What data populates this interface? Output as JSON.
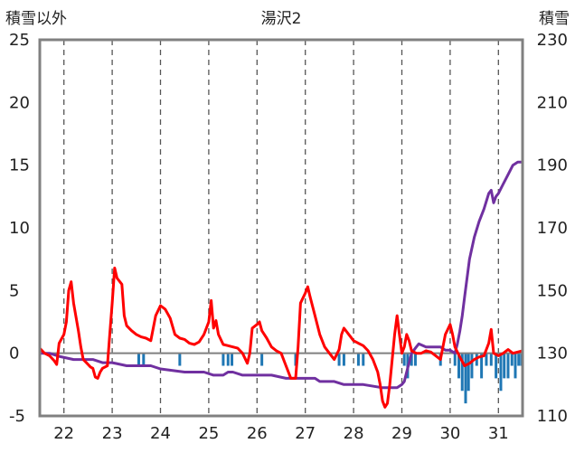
{
  "chart_data": {
    "type": "line",
    "title": "湯沢2",
    "left_axis_label": "積雪以外",
    "right_axis_label": "積雪",
    "x_categories": [
      "22",
      "23",
      "24",
      "25",
      "26",
      "27",
      "28",
      "29",
      "30",
      "31"
    ],
    "x_range": [
      21.5,
      31.5
    ],
    "y_left_ticks": [
      "25",
      "20",
      "15",
      "10",
      "5",
      "0",
      "-5"
    ],
    "y_left_range": [
      -5,
      25
    ],
    "y_right_ticks": [
      "230",
      "210",
      "190",
      "170",
      "150",
      "130",
      "110"
    ],
    "y_right_range": [
      110,
      230
    ],
    "grid": "dashed vertical at each day",
    "colors": {
      "temperature": "#ff0000",
      "snow_depth": "#7030a0",
      "precipitation": "#1f77b4",
      "zero_line": "#808080",
      "frame": "#808080"
    },
    "series": [
      {
        "key": "temperature",
        "axis": "left",
        "points": [
          [
            21.5,
            0.4
          ],
          [
            21.6,
            0
          ],
          [
            21.7,
            -0.2
          ],
          [
            21.8,
            -0.6
          ],
          [
            21.85,
            -0.9
          ],
          [
            21.9,
            0.8
          ],
          [
            22.0,
            1.5
          ],
          [
            22.05,
            2.5
          ],
          [
            22.1,
            5.0
          ],
          [
            22.15,
            5.7
          ],
          [
            22.2,
            4.0
          ],
          [
            22.3,
            1.8
          ],
          [
            22.35,
            0.5
          ],
          [
            22.4,
            -0.5
          ],
          [
            22.5,
            -0.9
          ],
          [
            22.55,
            -1.1
          ],
          [
            22.6,
            -1.2
          ],
          [
            22.65,
            -1.9
          ],
          [
            22.7,
            -2.0
          ],
          [
            22.75,
            -1.5
          ],
          [
            22.8,
            -1.2
          ],
          [
            22.85,
            -1.1
          ],
          [
            22.9,
            -1.0
          ],
          [
            22.95,
            1.5
          ],
          [
            23.0,
            4.0
          ],
          [
            23.05,
            6.8
          ],
          [
            23.1,
            6.0
          ],
          [
            23.2,
            5.5
          ],
          [
            23.25,
            3.0
          ],
          [
            23.3,
            2.2
          ],
          [
            23.4,
            1.8
          ],
          [
            23.5,
            1.5
          ],
          [
            23.6,
            1.3
          ],
          [
            23.7,
            1.2
          ],
          [
            23.8,
            1.0
          ],
          [
            23.9,
            3.0
          ],
          [
            24.0,
            3.8
          ],
          [
            24.1,
            3.5
          ],
          [
            24.2,
            2.8
          ],
          [
            24.3,
            1.5
          ],
          [
            24.4,
            1.2
          ],
          [
            24.5,
            1.1
          ],
          [
            24.6,
            0.8
          ],
          [
            24.7,
            0.7
          ],
          [
            24.8,
            0.9
          ],
          [
            24.9,
            1.5
          ],
          [
            25.0,
            2.5
          ],
          [
            25.05,
            4.2
          ],
          [
            25.1,
            2.0
          ],
          [
            25.15,
            2.6
          ],
          [
            25.2,
            1.5
          ],
          [
            25.3,
            0.7
          ],
          [
            25.4,
            0.6
          ],
          [
            25.5,
            0.5
          ],
          [
            25.6,
            0.4
          ],
          [
            25.7,
            0
          ],
          [
            25.8,
            -0.8
          ],
          [
            25.85,
            0
          ],
          [
            25.9,
            2.0
          ],
          [
            26.0,
            2.3
          ],
          [
            26.05,
            2.5
          ],
          [
            26.1,
            1.8
          ],
          [
            26.2,
            1.2
          ],
          [
            26.3,
            0.5
          ],
          [
            26.4,
            0.2
          ],
          [
            26.5,
            0.0
          ],
          [
            26.6,
            -1.0
          ],
          [
            26.7,
            -2.0
          ],
          [
            26.8,
            -2.0
          ],
          [
            26.85,
            0.5
          ],
          [
            26.9,
            4.0
          ],
          [
            27.0,
            4.8
          ],
          [
            27.05,
            5.3
          ],
          [
            27.1,
            4.5
          ],
          [
            27.2,
            3.0
          ],
          [
            27.3,
            1.5
          ],
          [
            27.4,
            0.5
          ],
          [
            27.5,
            0.0
          ],
          [
            27.6,
            -0.5
          ],
          [
            27.7,
            0.3
          ],
          [
            27.75,
            1.5
          ],
          [
            27.8,
            2.0
          ],
          [
            27.9,
            1.5
          ],
          [
            28.0,
            1.0
          ],
          [
            28.1,
            0.8
          ],
          [
            28.2,
            0.6
          ],
          [
            28.3,
            0.2
          ],
          [
            28.4,
            -0.5
          ],
          [
            28.5,
            -1.5
          ],
          [
            28.55,
            -2.5
          ],
          [
            28.6,
            -3.8
          ],
          [
            28.65,
            -4.3
          ],
          [
            28.7,
            -4.0
          ],
          [
            28.75,
            -2.5
          ],
          [
            28.8,
            -0.5
          ],
          [
            28.85,
            1.5
          ],
          [
            28.9,
            3.0
          ],
          [
            28.95,
            1.5
          ],
          [
            29.0,
            0
          ],
          [
            29.05,
            0.5
          ],
          [
            29.1,
            1.5
          ],
          [
            29.15,
            1.0
          ],
          [
            29.2,
            0.2
          ],
          [
            29.3,
            0.0
          ],
          [
            29.4,
            0.0
          ],
          [
            29.5,
            0.2
          ],
          [
            29.6,
            0.1
          ],
          [
            29.7,
            -0.2
          ],
          [
            29.8,
            -0.5
          ],
          [
            29.9,
            1.5
          ],
          [
            30.0,
            2.3
          ],
          [
            30.05,
            1.5
          ],
          [
            30.1,
            0.5
          ],
          [
            30.2,
            -0.3
          ],
          [
            30.3,
            -1.0
          ],
          [
            30.4,
            -0.8
          ],
          [
            30.5,
            -0.5
          ],
          [
            30.6,
            -0.3
          ],
          [
            30.7,
            -0.2
          ],
          [
            30.8,
            0.8
          ],
          [
            30.85,
            1.9
          ],
          [
            30.9,
            0
          ],
          [
            31.0,
            -0.2
          ],
          [
            31.1,
            0
          ],
          [
            31.2,
            0.3
          ],
          [
            31.3,
            0
          ],
          [
            31.4,
            0.1
          ],
          [
            31.5,
            0.2
          ]
        ]
      },
      {
        "key": "snow_depth",
        "axis": "right",
        "points": [
          [
            21.5,
            130
          ],
          [
            21.7,
            130
          ],
          [
            21.9,
            129
          ],
          [
            22.2,
            128
          ],
          [
            22.6,
            128
          ],
          [
            22.8,
            127
          ],
          [
            23.0,
            127
          ],
          [
            23.3,
            126
          ],
          [
            23.8,
            126
          ],
          [
            24.0,
            125
          ],
          [
            24.5,
            124
          ],
          [
            24.9,
            124
          ],
          [
            25.1,
            123
          ],
          [
            25.3,
            123
          ],
          [
            25.4,
            124
          ],
          [
            25.5,
            124
          ],
          [
            25.7,
            123
          ],
          [
            26.3,
            123
          ],
          [
            26.6,
            122
          ],
          [
            27.0,
            122
          ],
          [
            27.2,
            122
          ],
          [
            27.3,
            121
          ],
          [
            27.6,
            121
          ],
          [
            27.8,
            120
          ],
          [
            28.2,
            120
          ],
          [
            28.6,
            119
          ],
          [
            28.9,
            119
          ],
          [
            29.0,
            120
          ],
          [
            29.05,
            121
          ],
          [
            29.1,
            124
          ],
          [
            29.15,
            127
          ],
          [
            29.2,
            130
          ],
          [
            29.3,
            132
          ],
          [
            29.35,
            133
          ],
          [
            29.5,
            132
          ],
          [
            29.8,
            132
          ],
          [
            29.9,
            131
          ],
          [
            30.0,
            131
          ],
          [
            30.1,
            130
          ],
          [
            30.15,
            133
          ],
          [
            30.2,
            137
          ],
          [
            30.25,
            142
          ],
          [
            30.3,
            148
          ],
          [
            30.4,
            160
          ],
          [
            30.5,
            167
          ],
          [
            30.6,
            172
          ],
          [
            30.7,
            176
          ],
          [
            30.8,
            181
          ],
          [
            30.85,
            182
          ],
          [
            30.9,
            178
          ],
          [
            30.95,
            180
          ],
          [
            31.0,
            181
          ],
          [
            31.1,
            184
          ],
          [
            31.2,
            187
          ],
          [
            31.3,
            190
          ],
          [
            31.4,
            191
          ],
          [
            31.5,
            191
          ]
        ]
      },
      {
        "key": "precipitation",
        "axis": "left",
        "type": "bar",
        "bars": [
          [
            23.55,
            -1.0
          ],
          [
            23.65,
            -1.0
          ],
          [
            24.4,
            -1.0
          ],
          [
            25.3,
            -1.0
          ],
          [
            25.4,
            -1.0
          ],
          [
            25.48,
            -1.0
          ],
          [
            26.1,
            -1.0
          ],
          [
            26.8,
            -1.0
          ],
          [
            27.7,
            -1.0
          ],
          [
            27.8,
            -1.0
          ],
          [
            28.1,
            -1.0
          ],
          [
            28.2,
            -1.0
          ],
          [
            29.05,
            -1.0
          ],
          [
            29.12,
            -2.0
          ],
          [
            29.2,
            -1.0
          ],
          [
            29.28,
            -1.0
          ],
          [
            29.8,
            -1.0
          ],
          [
            30.1,
            -1.0
          ],
          [
            30.18,
            -2.0
          ],
          [
            30.25,
            -3.0
          ],
          [
            30.32,
            -4.0
          ],
          [
            30.38,
            -3.0
          ],
          [
            30.45,
            -2.0
          ],
          [
            30.55,
            -1.0
          ],
          [
            30.65,
            -2.0
          ],
          [
            30.75,
            -1.0
          ],
          [
            30.85,
            -1.0
          ],
          [
            30.95,
            -2.0
          ],
          [
            31.05,
            -3.0
          ],
          [
            31.12,
            -2.0
          ],
          [
            31.2,
            -2.0
          ],
          [
            31.28,
            -1.0
          ],
          [
            31.35,
            -2.0
          ],
          [
            31.42,
            -1.0
          ],
          [
            31.48,
            -1.0
          ]
        ]
      }
    ]
  }
}
